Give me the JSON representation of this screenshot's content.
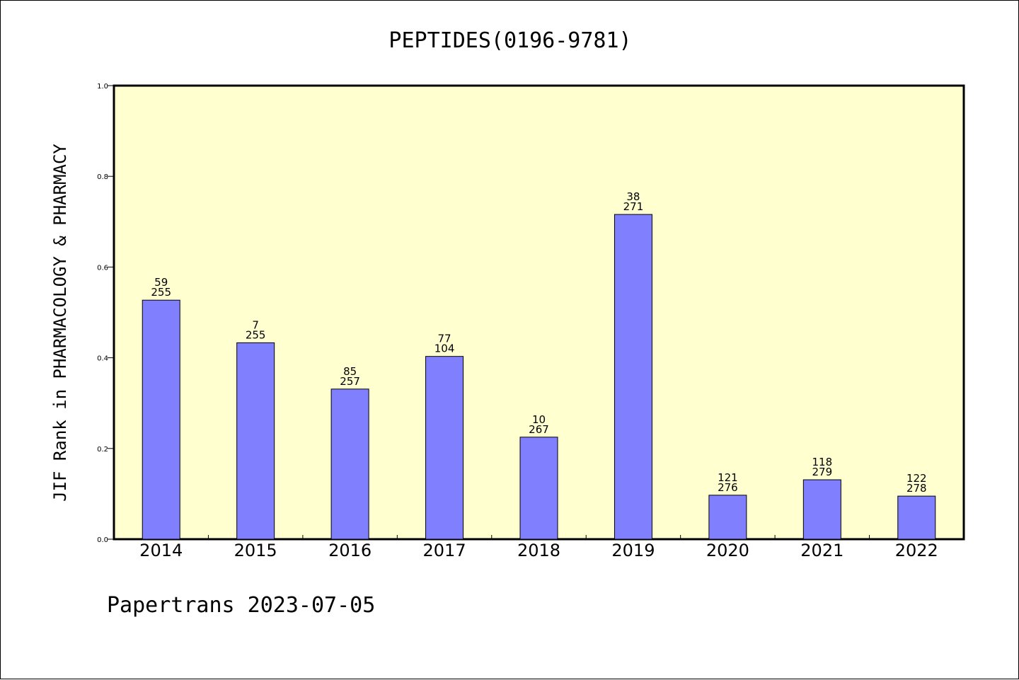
{
  "chart_data": {
    "type": "bar",
    "title": "PEPTIDES(0196-9781)",
    "xlabel": "",
    "ylabel": "JIF Rank in PHARMACOLOGY & PHARMACY",
    "categories": [
      "2014",
      "2015",
      "2016",
      "2017",
      "2018",
      "2019",
      "2020",
      "2021",
      "2022"
    ],
    "values": [
      0.527,
      0.433,
      0.331,
      0.403,
      0.225,
      0.716,
      0.097,
      0.131,
      0.095
    ],
    "bar_labels": [
      {
        "rank": "59",
        "total": "255"
      },
      {
        "rank": "7",
        "total": "255"
      },
      {
        "rank": "85",
        "total": "257"
      },
      {
        "rank": "77",
        "total": "104"
      },
      {
        "rank": "10",
        "total": "267"
      },
      {
        "rank": "38",
        "total": "271"
      },
      {
        "rank": "121",
        "total": "276"
      },
      {
        "rank": "118",
        "total": "279"
      },
      {
        "rank": "122",
        "total": "278"
      }
    ],
    "ylim": [
      0,
      1.0
    ],
    "yticks": [
      "0.0",
      "0.2",
      "0.4",
      "0.6",
      "0.8",
      "1.0"
    ],
    "grid": false,
    "colors": {
      "bar": "#8080ff",
      "plot_background": "#ffffd0"
    }
  },
  "footer": "Papertrans 2023-07-05"
}
